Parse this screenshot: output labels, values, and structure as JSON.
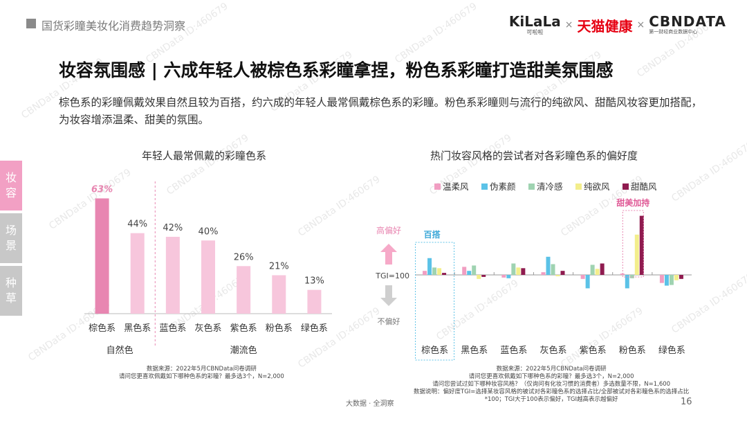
{
  "header": {
    "section_title": "国货彩瞳美妆化消费趋势洞察",
    "logos": {
      "kilala": "KiLaLa",
      "kilala_sub": "可啦啦",
      "sep1": "×",
      "tmall": "天猫健康",
      "sep2": "×",
      "cbn": "CBNDATA",
      "cbn_sub": "第一财经商业数据中心"
    }
  },
  "headline": "妆容氛围感 | 六成年轻人被棕色系彩瞳拿捏，粉色系彩瞳打造甜美氛围感",
  "description": "棕色系的彩瞳佩戴效果自然且较为百搭，约六成的年轻人最常佩戴棕色系的彩瞳。粉色系彩瞳则与流行的纯欲风、甜酷风妆容更加搭配，为妆容增添温柔、甜美的氛围。",
  "side_tabs": {
    "tab1": "妆\n容",
    "tab2": "场\n景",
    "tab3": "种\n草"
  },
  "watermark": "CBNData ID:460679",
  "footer": {
    "brand": "大数据 · 全洞察",
    "page": "16"
  },
  "chart_data": [
    {
      "type": "bar",
      "title": "年轻人最常佩戴的彩瞳色系",
      "categories": [
        "棕色系",
        "黑色系",
        "蓝色系",
        "灰色系",
        "紫色系",
        "粉色系",
        "绿色系"
      ],
      "values": [
        63,
        44,
        42,
        40,
        26,
        21,
        13
      ],
      "value_labels": [
        "63%",
        "44%",
        "42%",
        "40%",
        "26%",
        "21%",
        "13%"
      ],
      "groups": [
        {
          "label": "自然色",
          "categories": [
            "棕色系",
            "黑色系"
          ]
        },
        {
          "label": "潮流色",
          "categories": [
            "蓝色系",
            "灰色系",
            "紫色系",
            "粉色系",
            "绿色系"
          ]
        }
      ],
      "ylim": [
        0,
        70
      ],
      "colors": {
        "highlight": "#e886b1",
        "normal": "#f7c6dc"
      },
      "source": [
        "数据来源：2022年5月CBNData问卷调研",
        "请问您更喜欢佩戴如下哪种色系的彩瞳？最多选3个，N=2,000"
      ]
    },
    {
      "type": "bar",
      "title": "热门妆容风格的尝试者对各彩瞳色系的偏好度",
      "categories": [
        "棕色系",
        "黑色系",
        "蓝色系",
        "灰色系",
        "紫色系",
        "粉色系",
        "绿色系"
      ],
      "series": [
        {
          "name": "温柔风",
          "color": "#f19ec2",
          "values": [
            106,
            112,
            96,
            104,
            94,
            102,
            88
          ]
        },
        {
          "name": "伪素颜",
          "color": "#5bc2e7",
          "values": [
            125,
            106,
            95,
            127,
            80,
            80,
            84
          ]
        },
        {
          "name": "清冷感",
          "color": "#9fd3b1",
          "values": [
            111,
            114,
            117,
            116,
            115,
            95,
            85
          ]
        },
        {
          "name": "纯欲风",
          "color": "#f3ee8c",
          "values": [
            110,
            94,
            111,
            98,
            109,
            160,
            92
          ]
        },
        {
          "name": "甜酷风",
          "color": "#8f1b4f",
          "values": [
            103,
            97,
            110,
            106,
            117,
            188,
            94
          ]
        }
      ],
      "baseline": 100,
      "baseline_label": "TGI=100",
      "axis_high_label": "高偏好",
      "axis_low_label": "不偏好",
      "annotations": [
        {
          "category": "棕色系",
          "text": "百搭"
        },
        {
          "category": "粉色系",
          "text": "甜美加持"
        }
      ],
      "source": [
        "数据来源：2022年5月CBNData问卷调研",
        "请问您更喜欢佩戴如下哪种色系的彩瞳？最多选3个，N=2,000",
        "请问您尝试过如下哪种妆容风格？（仅询问有化妆习惯的消费者）多选数量不限，N=1,600",
        "数据说明：偏好度TGI=选择某妆容风格的被试对各彩瞳色系的选择占比/全部被试对各彩瞳色系的选择占比",
        "*100；TGI大于100表示偏好，TGI越高表示越偏好"
      ]
    }
  ]
}
